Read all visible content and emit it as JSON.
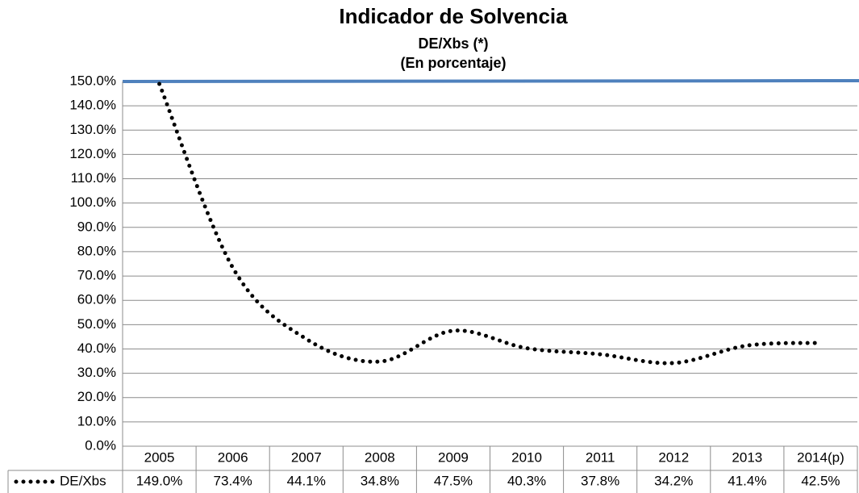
{
  "chart_data": {
    "type": "line",
    "title": "Indicador de Solvencia",
    "subtitle": [
      "DE/Xbs (*)",
      "(En porcentaje)"
    ],
    "categories": [
      "2005",
      "2006",
      "2007",
      "2008",
      "2009",
      "2010",
      "2011",
      "2012",
      "2013",
      "2014(p)"
    ],
    "series": [
      {
        "name": "DE/Xbs",
        "color": "#000000",
        "values": [
          149.0,
          73.4,
          44.1,
          34.8,
          47.5,
          40.3,
          37.8,
          34.2,
          41.4,
          42.5
        ],
        "value_labels": [
          "149.0%",
          "73.4%",
          "44.1%",
          "34.8%",
          "47.5%",
          "40.3%",
          "37.8%",
          "34.2%",
          "41.4%",
          "42.5%"
        ]
      }
    ],
    "ylim": [
      0,
      150
    ],
    "yticks": [
      {
        "value": 0,
        "label": "0.0%"
      },
      {
        "value": 10,
        "label": "10.0%"
      },
      {
        "value": 20,
        "label": "20.0%"
      },
      {
        "value": 30,
        "label": "30.0%"
      },
      {
        "value": 40,
        "label": "40.0%"
      },
      {
        "value": 50,
        "label": "50.0%"
      },
      {
        "value": 60,
        "label": "60.0%"
      },
      {
        "value": 70,
        "label": "70.0%"
      },
      {
        "value": 80,
        "label": "80.0%"
      },
      {
        "value": 90,
        "label": "90.0%"
      },
      {
        "value": 100,
        "label": "100.0%"
      },
      {
        "value": 110,
        "label": "110.0%"
      },
      {
        "value": 120,
        "label": "120.0%"
      },
      {
        "value": 130,
        "label": "130.0%"
      },
      {
        "value": 140,
        "label": "140.0%"
      },
      {
        "value": 150,
        "label": "150.0%"
      }
    ],
    "grid": true
  }
}
